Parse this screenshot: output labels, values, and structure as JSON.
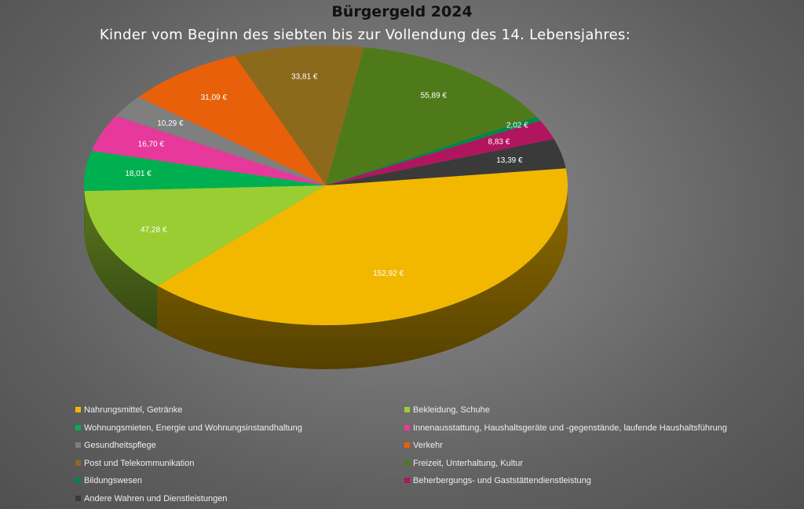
{
  "title": "Bürgergeld 2024",
  "subtitle": "Kinder vom Beginn des siebten bis zur Vollendung des 14. Lebensjahres:",
  "chart_data": {
    "type": "pie",
    "title": "Bürgergeld 2024",
    "subtitle": "Kinder vom Beginn des siebten bis zur Vollendung des 14. Lebensjahres:",
    "legend_position": "bottom",
    "slices": [
      {
        "name": "Nahrungsmittel, Getränke",
        "value": 152.92,
        "label": "152,92 €",
        "color": "#f2b800"
      },
      {
        "name": "Bekleidung, Schuhe",
        "value": 47.28,
        "label": "47,28 €",
        "color": "#9acd32"
      },
      {
        "name": "Wohnungsmieten, Energie und Wohnungsinstandhaltung",
        "value": 18.01,
        "label": "18,01 €",
        "color": "#00b050"
      },
      {
        "name": "Innenausstattung, Haushaltsgeräte und -gegenstände, laufende Haushaltsführung",
        "value": 16.7,
        "label": "16,70 €",
        "color": "#e6399b"
      },
      {
        "name": "Gesundheitspflege",
        "value": 10.29,
        "label": "10,29 €",
        "color": "#7f7f7f"
      },
      {
        "name": "Verkehr",
        "value": 31.09,
        "label": "31,09 €",
        "color": "#e8600a"
      },
      {
        "name": "Post und Telekommunikation",
        "value": 33.81,
        "label": "33,81 €",
        "color": "#8c6a1c"
      },
      {
        "name": "Freizeit, Unterhaltung, Kultur",
        "value": 55.89,
        "label": "55,89 €",
        "color": "#4f7a1a"
      },
      {
        "name": "Bildungswesen",
        "value": 2.02,
        "label": "2,02 €",
        "color": "#00874a"
      },
      {
        "name": "Beherbergungs- und Gaststättendienstleistung",
        "value": 8.83,
        "label": "8,83 €",
        "color": "#b0155e"
      },
      {
        "name": "Andere Wahren und Dienstleistungen",
        "value": 13.39,
        "label": "13,39 €",
        "color": "#3a3a3a"
      }
    ]
  }
}
